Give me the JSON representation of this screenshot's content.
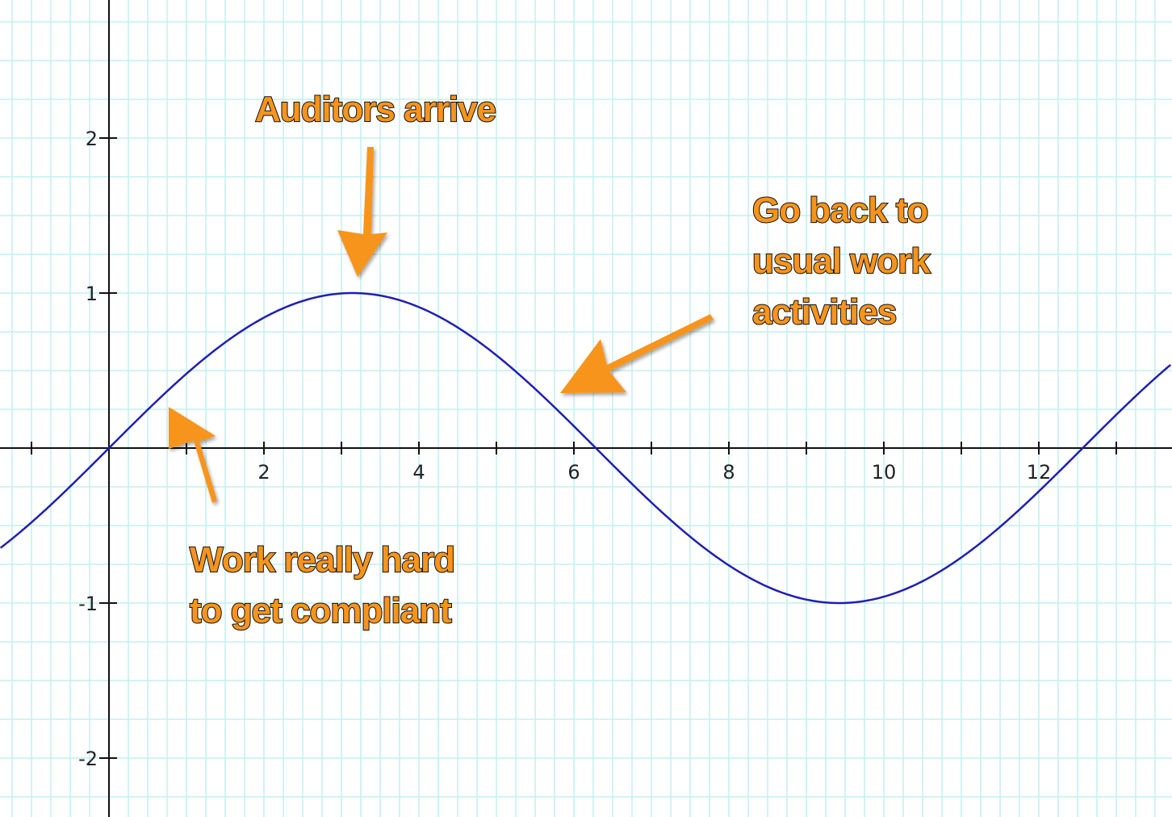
{
  "chart_data": {
    "type": "line",
    "title": "",
    "xlabel": "",
    "ylabel": "",
    "xlim": [
      -1.4,
      13.7
    ],
    "ylim": [
      -2.4,
      2.9
    ],
    "grid": true,
    "grid_step": 0.25,
    "x_ticks": [
      -1,
      1,
      2,
      3,
      4,
      5,
      6,
      7,
      8,
      9,
      10,
      11,
      12,
      13
    ],
    "x_tick_labels": [
      {
        "value": 2,
        "text": "2"
      },
      {
        "value": 4,
        "text": "4"
      },
      {
        "value": 6,
        "text": "6"
      },
      {
        "value": 8,
        "text": "8"
      },
      {
        "value": 10,
        "text": "10"
      },
      {
        "value": 12,
        "text": "12"
      }
    ],
    "y_ticks": [
      -2,
      -1,
      1,
      2
    ],
    "y_tick_labels": [
      {
        "value": 2,
        "text": "2"
      },
      {
        "value": 1,
        "text": "1"
      },
      {
        "value": -1,
        "text": "-1"
      },
      {
        "value": -2,
        "text": "-2"
      }
    ],
    "series": [
      {
        "function": "y = sin(x / 2)",
        "x": [
          -1.4,
          -1,
          0,
          1,
          2,
          3,
          3.14,
          4,
          5,
          6,
          6.28,
          7,
          8,
          9,
          9.42,
          10,
          11,
          12,
          12.57,
          13,
          13.7
        ],
        "y": [
          -0.64,
          -0.48,
          0,
          0.48,
          0.84,
          1.0,
          1.0,
          0.91,
          0.6,
          0.14,
          0,
          -0.35,
          -0.76,
          -0.98,
          -1.0,
          -0.96,
          -0.71,
          -0.28,
          0,
          0.22,
          0.54
        ]
      }
    ],
    "annotations": [
      {
        "id": "auditors",
        "lines": [
          "Auditors arrive"
        ],
        "points_to": [
          3.2,
          1.0
        ]
      },
      {
        "id": "goback",
        "lines": [
          "Go back to",
          "usual work",
          "activities"
        ],
        "points_to": [
          5.8,
          0.36
        ]
      },
      {
        "id": "work",
        "lines": [
          "Work really hard",
          "to get compliant"
        ],
        "points_to": [
          0.8,
          0.27
        ]
      }
    ]
  },
  "colors": {
    "background": "#ffffff",
    "grid": "#c2f0ef",
    "axis": "#111111",
    "curve": "#1f1fb4",
    "callout_fill": "#f7941d",
    "callout_stroke": "#111111",
    "arrow": "#f7941d"
  }
}
